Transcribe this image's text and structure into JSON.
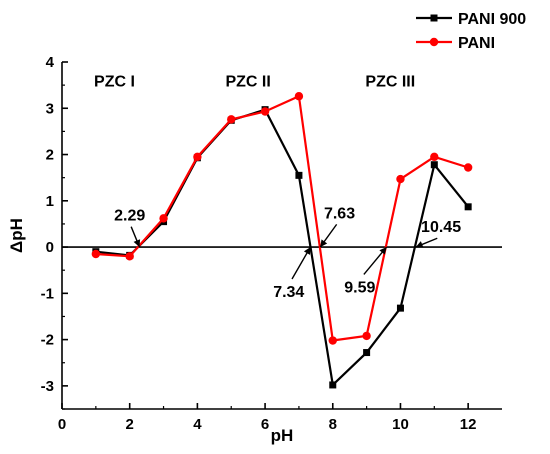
{
  "chart_data": {
    "type": "line",
    "xlabel": "pH",
    "ylabel": "ΔpH",
    "xlim": [
      0,
      13
    ],
    "ylim": [
      -3.5,
      4
    ],
    "x_ticks": [
      0,
      2,
      4,
      6,
      8,
      10,
      12
    ],
    "x_tick_labels": [
      "0",
      "2",
      "4",
      "6",
      "8",
      "10",
      "12"
    ],
    "y_ticks": [
      -3,
      -2,
      -1,
      0,
      1,
      2,
      3,
      4
    ],
    "y_tick_labels": [
      "-3",
      "-2",
      "-1",
      "0",
      "1",
      "2",
      "3",
      "4"
    ],
    "reference_line": 0,
    "grid": false,
    "legend_position": "top-right",
    "series": [
      {
        "name": "PANI 900",
        "color": "#000000",
        "marker": "square",
        "x": [
          1,
          2,
          3,
          4,
          5,
          6,
          7,
          8,
          9,
          10,
          11,
          12
        ],
        "y": [
          -0.1,
          -0.18,
          0.55,
          1.93,
          2.74,
          2.97,
          1.55,
          -2.98,
          -2.28,
          -1.32,
          1.78,
          0.87
        ]
      },
      {
        "name": "PANI",
        "color": "#ff0000",
        "marker": "circle",
        "x": [
          1,
          2,
          3,
          4,
          5,
          6,
          7,
          8,
          9,
          10,
          11,
          12
        ],
        "y": [
          -0.15,
          -0.2,
          0.62,
          1.95,
          2.76,
          2.93,
          3.26,
          -2.02,
          -1.92,
          1.47,
          1.95,
          1.72
        ]
      }
    ],
    "annotations": [
      {
        "text": "PZC I",
        "x": 1.55,
        "y": 3.6
      },
      {
        "text": "PZC II",
        "x": 5.5,
        "y": 3.6
      },
      {
        "text": "PZC III",
        "x": 9.7,
        "y": 3.6
      },
      {
        "text": "2.29",
        "x": 2.0,
        "y": 0.7,
        "arrow_to": [
          2.29,
          0
        ]
      },
      {
        "text": "7.63",
        "x": 8.2,
        "y": 0.75,
        "arrow_to": [
          7.63,
          0
        ]
      },
      {
        "text": "7.34",
        "x": 6.7,
        "y": -0.95,
        "arrow_to": [
          7.34,
          0
        ]
      },
      {
        "text": "9.59",
        "x": 8.8,
        "y": -0.85,
        "arrow_to": [
          9.59,
          0
        ]
      },
      {
        "text": "10.45",
        "x": 11.2,
        "y": 0.45,
        "arrow_to": [
          10.45,
          0
        ]
      }
    ]
  }
}
